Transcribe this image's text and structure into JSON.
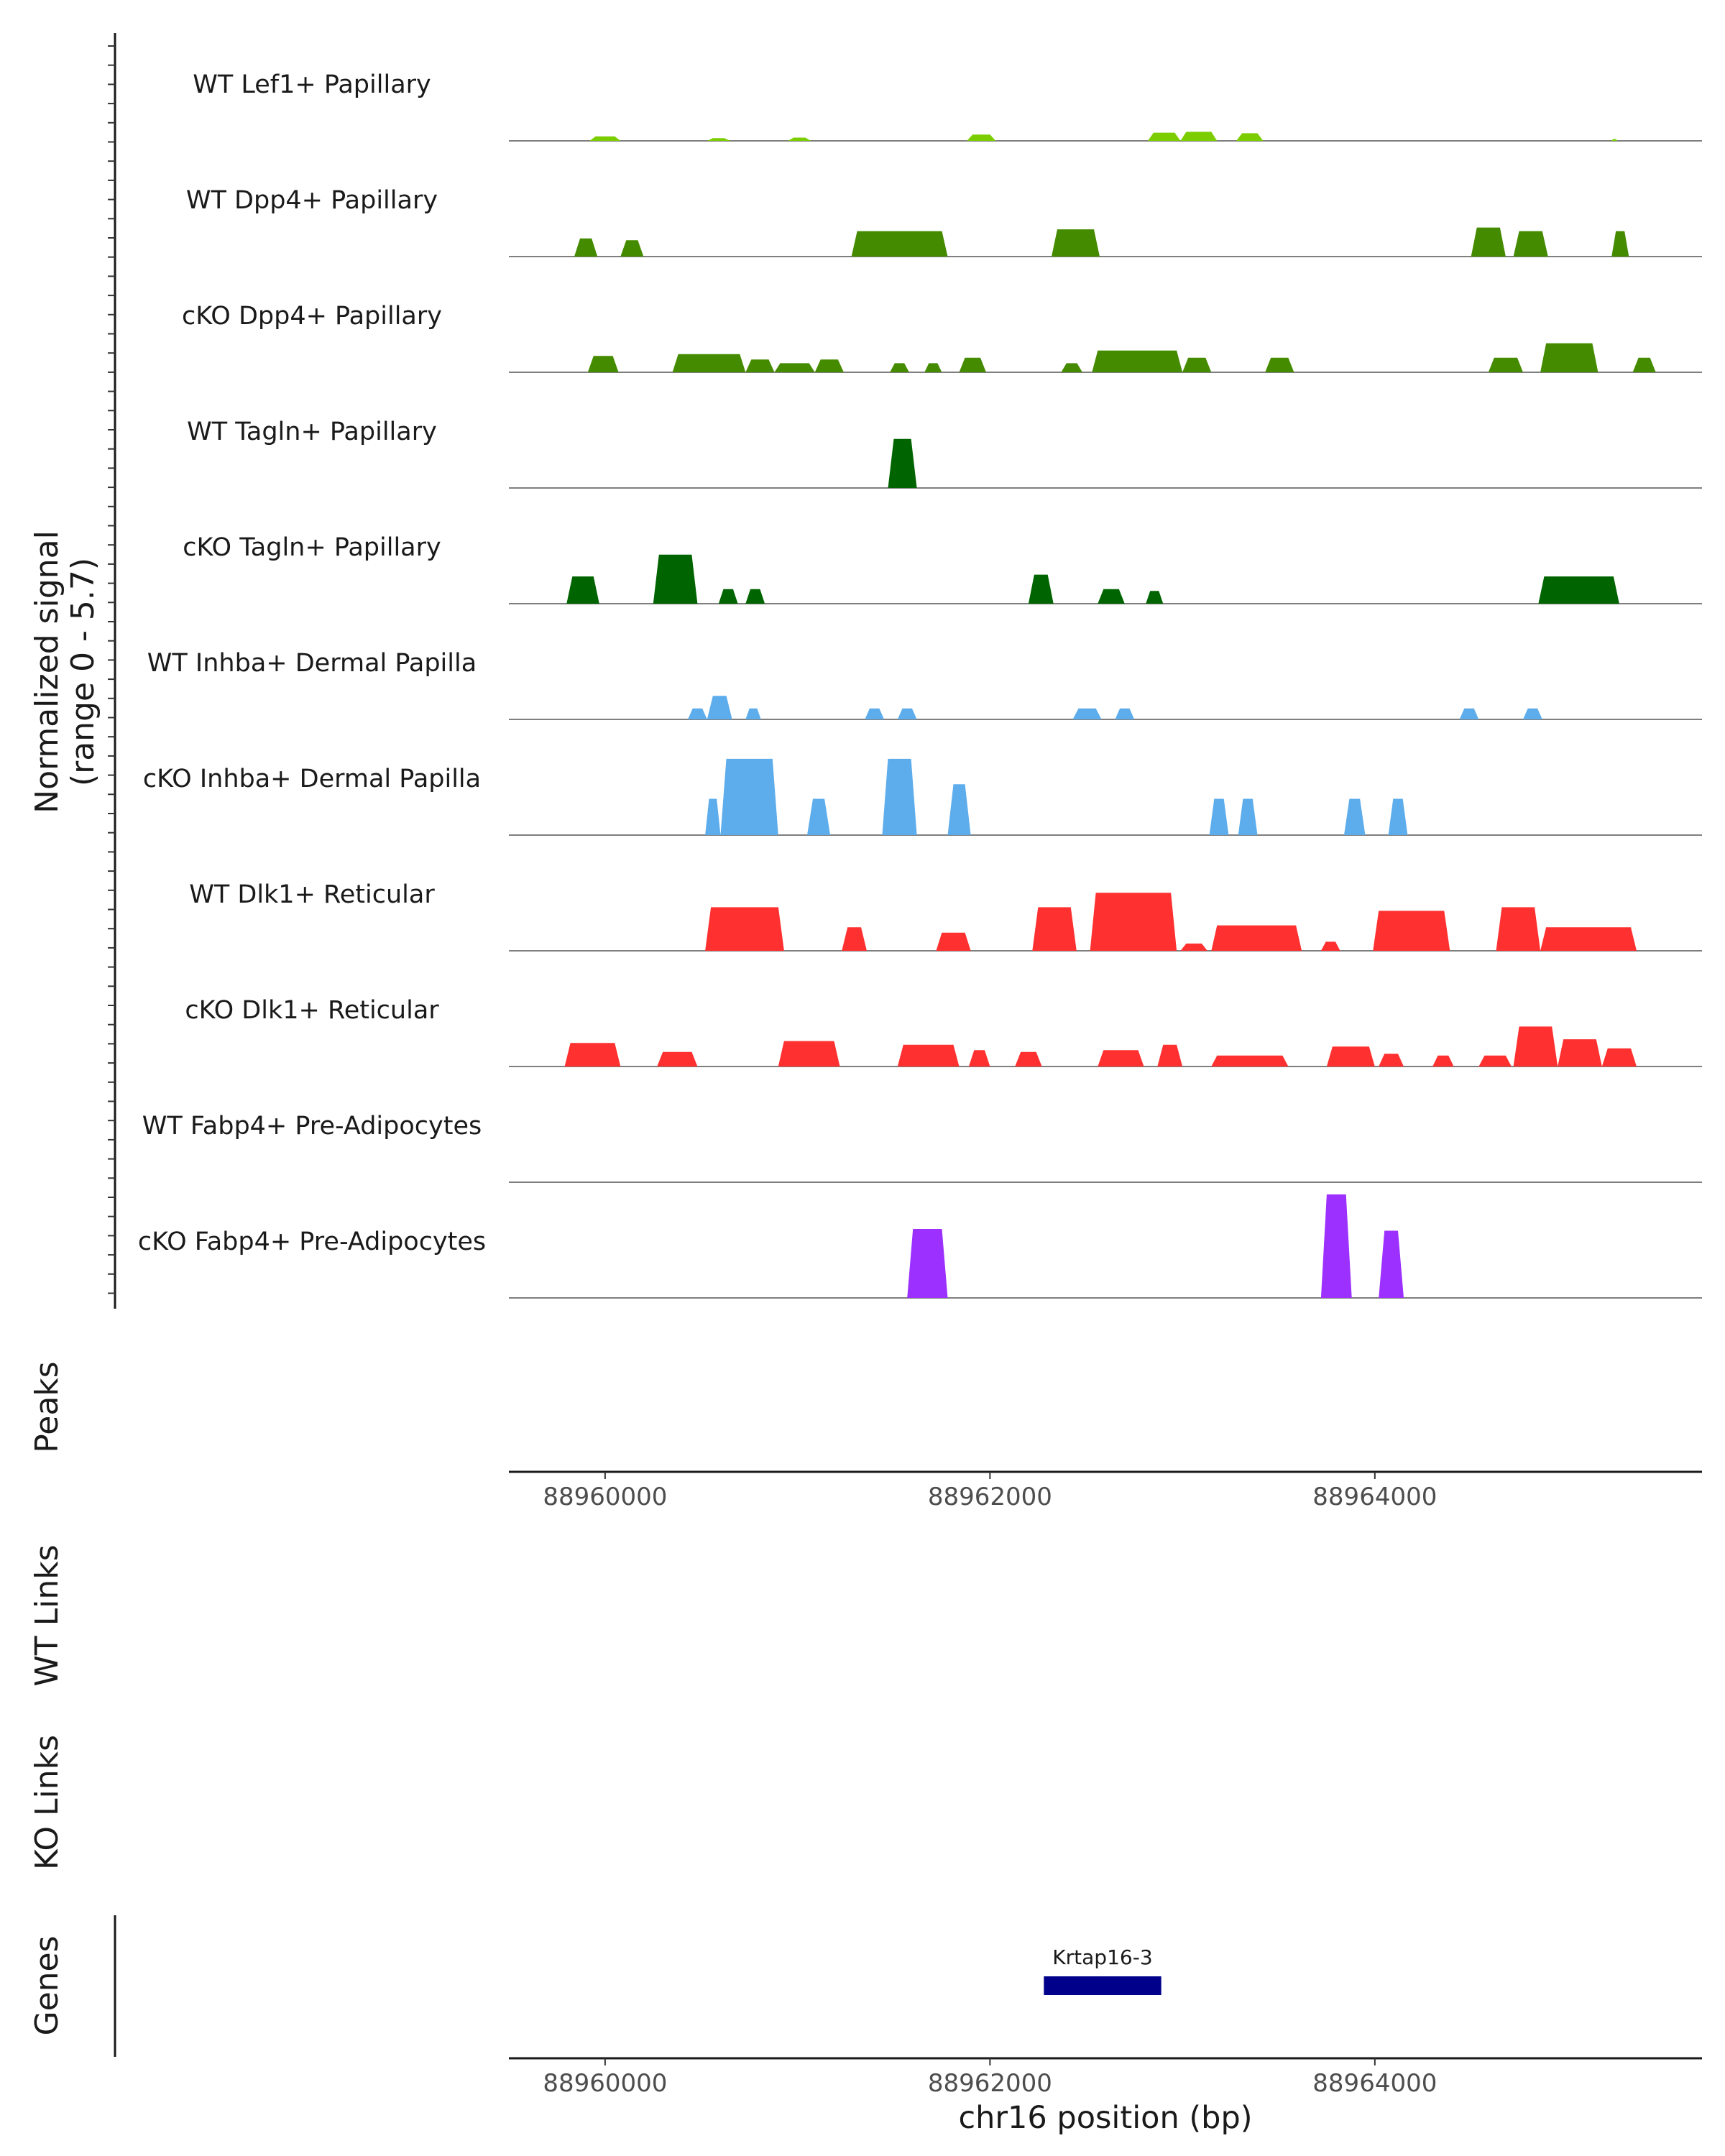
{
  "chart_data": {
    "type": "area",
    "title": "",
    "xlabel": "chr16 position (bp)",
    "x_range": [
      88959030,
      88965330
    ],
    "xlim": [
      88959500,
      88965700
    ],
    "x_ticks": [
      88960000,
      88962000,
      88964000
    ],
    "x_tick_labels": [
      "88960000",
      "88962000",
      "88964000"
    ],
    "signal_ylabel": [
      "Normalized signal",
      "(range 0 - 5.7)"
    ],
    "y_range": [
      0,
      5.7
    ],
    "panel_labels": {
      "peaks": "Peaks",
      "wt_links": "WT Links",
      "ko_links": "KO Links",
      "genes": "Genes"
    },
    "series": [
      {
        "name": "WT Lef1+ Papillary",
        "color": "#7CCD00",
        "regions": [
          [
            88959920,
            88960080,
            0.25
          ],
          [
            88960530,
            88960650,
            0.15
          ],
          [
            88960950,
            88961070,
            0.18
          ],
          [
            88961880,
            88962030,
            0.35
          ],
          [
            88962820,
            88962990,
            0.45
          ],
          [
            88962990,
            88963180,
            0.5
          ],
          [
            88963280,
            88963420,
            0.42
          ],
          [
            88965230,
            88965260,
            0.1
          ]
        ]
      },
      {
        "name": "WT Dpp4+ Papillary",
        "color": "#458B00",
        "regions": [
          [
            88959840,
            88959960,
            1.0
          ],
          [
            88960080,
            88960200,
            0.9
          ],
          [
            88961280,
            88961780,
            1.4
          ],
          [
            88962320,
            88962570,
            1.5
          ],
          [
            88964500,
            88964680,
            1.6
          ],
          [
            88964720,
            88964900,
            1.4
          ],
          [
            88965230,
            88965320,
            1.4
          ]
        ]
      },
      {
        "name": "cKO Dpp4+ Papillary",
        "color": "#458B00",
        "regions": [
          [
            88959910,
            88960070,
            0.9
          ],
          [
            88960350,
            88960730,
            1.0
          ],
          [
            88960730,
            88960880,
            0.7
          ],
          [
            88960880,
            88961090,
            0.5
          ],
          [
            88961090,
            88961240,
            0.7
          ],
          [
            88961480,
            88961580,
            0.5
          ],
          [
            88961660,
            88961750,
            0.5
          ],
          [
            88961840,
            88961980,
            0.8
          ],
          [
            88962370,
            88962480,
            0.5
          ],
          [
            88962530,
            88963000,
            1.2
          ],
          [
            88963000,
            88963150,
            0.8
          ],
          [
            88963430,
            88963580,
            0.8
          ],
          [
            88964590,
            88964770,
            0.8
          ],
          [
            88964860,
            88965160,
            1.6
          ],
          [
            88965340,
            88965460,
            0.8
          ]
        ]
      },
      {
        "name": "WT Tagln+ Papillary",
        "color": "#006400",
        "regions": [
          [
            88961470,
            88961620,
            2.7
          ]
        ]
      },
      {
        "name": "cKO Tagln+ Papillary",
        "color": "#006400",
        "regions": [
          [
            88959800,
            88959970,
            1.5
          ],
          [
            88960250,
            88960480,
            2.7
          ],
          [
            88960590,
            88960690,
            0.8
          ],
          [
            88960730,
            88960830,
            0.8
          ],
          [
            88962200,
            88962330,
            1.6
          ],
          [
            88962560,
            88962700,
            0.8
          ],
          [
            88962810,
            88962900,
            0.7
          ],
          [
            88964850,
            88965270,
            1.5
          ]
        ]
      },
      {
        "name": "WT Inhba+ Dermal Papilla",
        "color": "#5DADEC",
        "regions": [
          [
            88960430,
            88960530,
            0.6
          ],
          [
            88960530,
            88960660,
            1.3
          ],
          [
            88960730,
            88960810,
            0.6
          ],
          [
            88961350,
            88961450,
            0.6
          ],
          [
            88961520,
            88961620,
            0.6
          ],
          [
            88962430,
            88962580,
            0.6
          ],
          [
            88962650,
            88962750,
            0.6
          ],
          [
            88964440,
            88964540,
            0.6
          ],
          [
            88964770,
            88964870,
            0.6
          ]
        ]
      },
      {
        "name": "cKO Inhba+ Dermal Papilla",
        "color": "#5DADEC",
        "regions": [
          [
            88960520,
            88960600,
            2.0
          ],
          [
            88960600,
            88960900,
            4.2
          ],
          [
            88961050,
            88961170,
            2.0
          ],
          [
            88961440,
            88961620,
            4.2
          ],
          [
            88961780,
            88961900,
            2.8
          ],
          [
            88963140,
            88963240,
            2.0
          ],
          [
            88963290,
            88963390,
            2.0
          ],
          [
            88963840,
            88963950,
            2.0
          ],
          [
            88964070,
            88964170,
            2.0
          ]
        ]
      },
      {
        "name": "WT Dlk1+ Reticular",
        "color": "#FF3030",
        "regions": [
          [
            88960520,
            88960930,
            2.4
          ],
          [
            88961230,
            88961360,
            1.3
          ],
          [
            88961720,
            88961900,
            1.0
          ],
          [
            88962220,
            88962450,
            2.4
          ],
          [
            88962520,
            88962970,
            3.2
          ],
          [
            88962990,
            88963130,
            0.4
          ],
          [
            88963150,
            88963620,
            1.4
          ],
          [
            88963720,
            88963820,
            0.5
          ],
          [
            88963990,
            88964390,
            2.2
          ],
          [
            88964630,
            88964860,
            2.4
          ],
          [
            88964860,
            88965360,
            1.3
          ]
        ]
      },
      {
        "name": "cKO Dlk1+ Reticular",
        "color": "#FF3030",
        "regions": [
          [
            88959790,
            88960080,
            1.3
          ],
          [
            88960270,
            88960480,
            0.8
          ],
          [
            88960900,
            88961220,
            1.4
          ],
          [
            88961520,
            88961840,
            1.2
          ],
          [
            88961890,
            88962000,
            0.9
          ],
          [
            88962130,
            88962270,
            0.8
          ],
          [
            88962560,
            88962800,
            0.9
          ],
          [
            88962870,
            88963000,
            1.2
          ],
          [
            88963150,
            88963550,
            0.6
          ],
          [
            88963750,
            88964000,
            1.1
          ],
          [
            88964020,
            88964150,
            0.7
          ],
          [
            88964300,
            88964410,
            0.6
          ],
          [
            88964540,
            88964710,
            0.6
          ],
          [
            88964720,
            88964950,
            2.2
          ],
          [
            88964950,
            88965180,
            1.5
          ],
          [
            88965180,
            88965360,
            1.0
          ]
        ]
      },
      {
        "name": "WT Fabp4+ Pre-Adipocytes",
        "color": "#9B30FF",
        "regions": []
      },
      {
        "name": "cKO Fabp4+ Pre-Adipocytes",
        "color": "#9B30FF",
        "regions": [
          [
            88961570,
            88961780,
            3.8
          ],
          [
            88963720,
            88963880,
            5.7
          ],
          [
            88964020,
            88964150,
            3.7
          ]
        ]
      }
    ],
    "genes": [
      {
        "name": "Krtap16-3",
        "start": 88962280,
        "end": 88962890,
        "color": "#00008B"
      }
    ]
  }
}
